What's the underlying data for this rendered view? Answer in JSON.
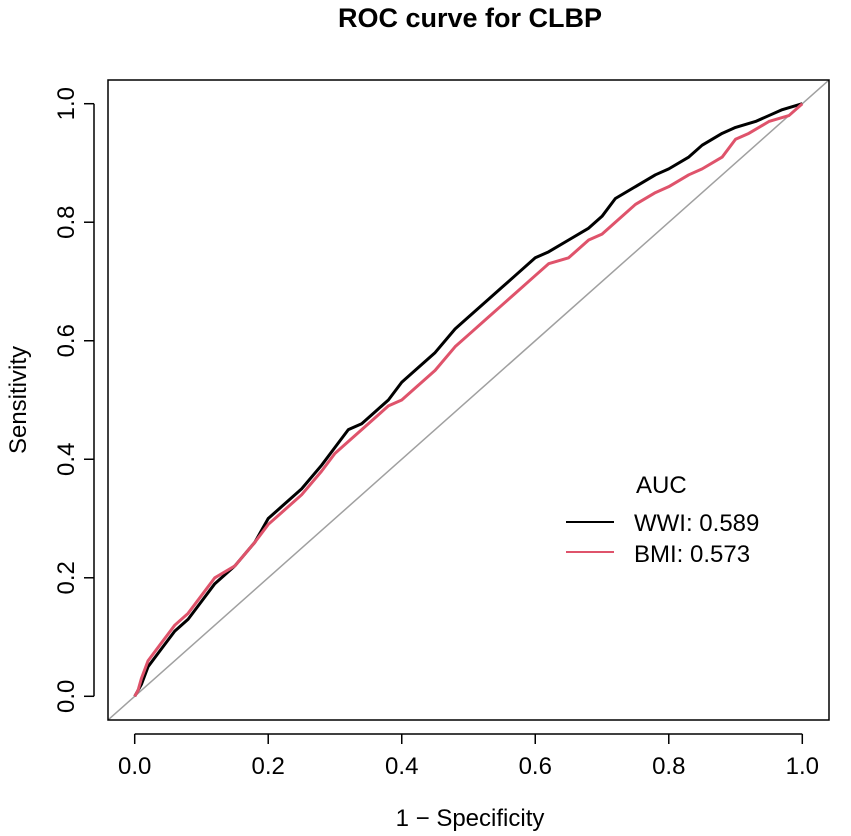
{
  "chart_data": {
    "type": "line",
    "title": "ROC curve for CLBP",
    "xlabel": "1 − Specificity",
    "ylabel": "Sensitivity",
    "xlim": [
      -0.04,
      1.04
    ],
    "ylim": [
      -0.04,
      1.04
    ],
    "xticks": [
      "0.0",
      "0.2",
      "0.4",
      "0.6",
      "0.8",
      "1.0"
    ],
    "yticks": [
      "0.0",
      "0.2",
      "0.4",
      "0.6",
      "0.8",
      "1.0"
    ],
    "reference_line": {
      "from": [
        0,
        0
      ],
      "to": [
        1,
        1
      ],
      "color": "#a0a0a0"
    },
    "legend": {
      "title": "AUC",
      "position": "right"
    },
    "series": [
      {
        "name": "WWI",
        "legend_label": "WWI: 0.589",
        "auc": 0.589,
        "color": "#000000",
        "points": [
          [
            0,
            0
          ],
          [
            0.005,
            0.01
          ],
          [
            0.01,
            0.02
          ],
          [
            0.02,
            0.05
          ],
          [
            0.04,
            0.08
          ],
          [
            0.06,
            0.11
          ],
          [
            0.08,
            0.13
          ],
          [
            0.1,
            0.16
          ],
          [
            0.12,
            0.19
          ],
          [
            0.15,
            0.22
          ],
          [
            0.18,
            0.26
          ],
          [
            0.2,
            0.3
          ],
          [
            0.22,
            0.32
          ],
          [
            0.25,
            0.35
          ],
          [
            0.28,
            0.39
          ],
          [
            0.3,
            0.42
          ],
          [
            0.32,
            0.45
          ],
          [
            0.34,
            0.46
          ],
          [
            0.36,
            0.48
          ],
          [
            0.38,
            0.5
          ],
          [
            0.4,
            0.53
          ],
          [
            0.42,
            0.55
          ],
          [
            0.45,
            0.58
          ],
          [
            0.48,
            0.62
          ],
          [
            0.5,
            0.64
          ],
          [
            0.53,
            0.67
          ],
          [
            0.55,
            0.69
          ],
          [
            0.57,
            0.71
          ],
          [
            0.6,
            0.74
          ],
          [
            0.62,
            0.75
          ],
          [
            0.65,
            0.77
          ],
          [
            0.68,
            0.79
          ],
          [
            0.7,
            0.81
          ],
          [
            0.72,
            0.84
          ],
          [
            0.75,
            0.86
          ],
          [
            0.78,
            0.88
          ],
          [
            0.8,
            0.89
          ],
          [
            0.83,
            0.91
          ],
          [
            0.85,
            0.93
          ],
          [
            0.88,
            0.95
          ],
          [
            0.9,
            0.96
          ],
          [
            0.93,
            0.97
          ],
          [
            0.95,
            0.98
          ],
          [
            0.97,
            0.99
          ],
          [
            1.0,
            1.0
          ]
        ]
      },
      {
        "name": "BMI",
        "legend_label": "BMI: 0.573",
        "auc": 0.573,
        "color": "#df536b",
        "points": [
          [
            0,
            0
          ],
          [
            0.005,
            0.01
          ],
          [
            0.01,
            0.03
          ],
          [
            0.02,
            0.06
          ],
          [
            0.04,
            0.09
          ],
          [
            0.06,
            0.12
          ],
          [
            0.08,
            0.14
          ],
          [
            0.1,
            0.17
          ],
          [
            0.12,
            0.2
          ],
          [
            0.15,
            0.22
          ],
          [
            0.18,
            0.26
          ],
          [
            0.2,
            0.29
          ],
          [
            0.22,
            0.31
          ],
          [
            0.25,
            0.34
          ],
          [
            0.28,
            0.38
          ],
          [
            0.3,
            0.41
          ],
          [
            0.32,
            0.43
          ],
          [
            0.35,
            0.46
          ],
          [
            0.38,
            0.49
          ],
          [
            0.4,
            0.5
          ],
          [
            0.42,
            0.52
          ],
          [
            0.45,
            0.55
          ],
          [
            0.48,
            0.59
          ],
          [
            0.5,
            0.61
          ],
          [
            0.53,
            0.64
          ],
          [
            0.55,
            0.66
          ],
          [
            0.57,
            0.68
          ],
          [
            0.6,
            0.71
          ],
          [
            0.62,
            0.73
          ],
          [
            0.65,
            0.74
          ],
          [
            0.68,
            0.77
          ],
          [
            0.7,
            0.78
          ],
          [
            0.72,
            0.8
          ],
          [
            0.75,
            0.83
          ],
          [
            0.78,
            0.85
          ],
          [
            0.8,
            0.86
          ],
          [
            0.83,
            0.88
          ],
          [
            0.85,
            0.89
          ],
          [
            0.88,
            0.91
          ],
          [
            0.9,
            0.94
          ],
          [
            0.92,
            0.95
          ],
          [
            0.95,
            0.97
          ],
          [
            0.98,
            0.98
          ],
          [
            1.0,
            1.0
          ]
        ]
      }
    ]
  }
}
